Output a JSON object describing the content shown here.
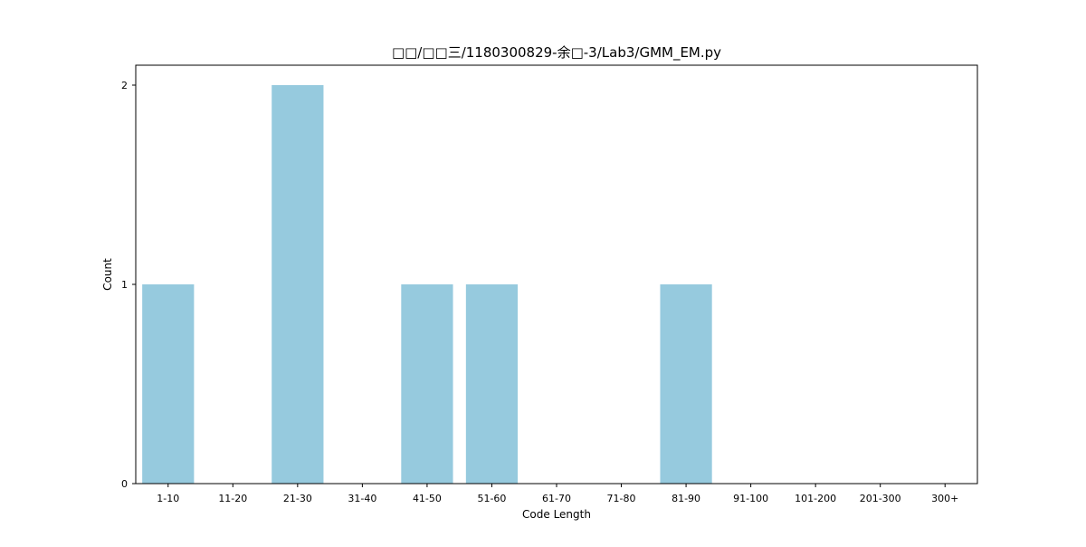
{
  "chart_data": {
    "type": "bar",
    "title": "□□/□□三/1180300829-余□-3/Lab3/GMM_EM.py",
    "xlabel": "Code Length",
    "ylabel": "Count",
    "categories": [
      "1-10",
      "11-20",
      "21-30",
      "31-40",
      "41-50",
      "51-60",
      "61-70",
      "71-80",
      "81-90",
      "91-100",
      "101-200",
      "201-300",
      "300+"
    ],
    "values": [
      1,
      0,
      2,
      0,
      1,
      1,
      0,
      0,
      1,
      0,
      0,
      0,
      0
    ],
    "yticks": [
      0,
      1,
      2
    ],
    "ylim": [
      0,
      2.1
    ],
    "grid": false,
    "legend": "none",
    "bar_color": "#96cade"
  }
}
